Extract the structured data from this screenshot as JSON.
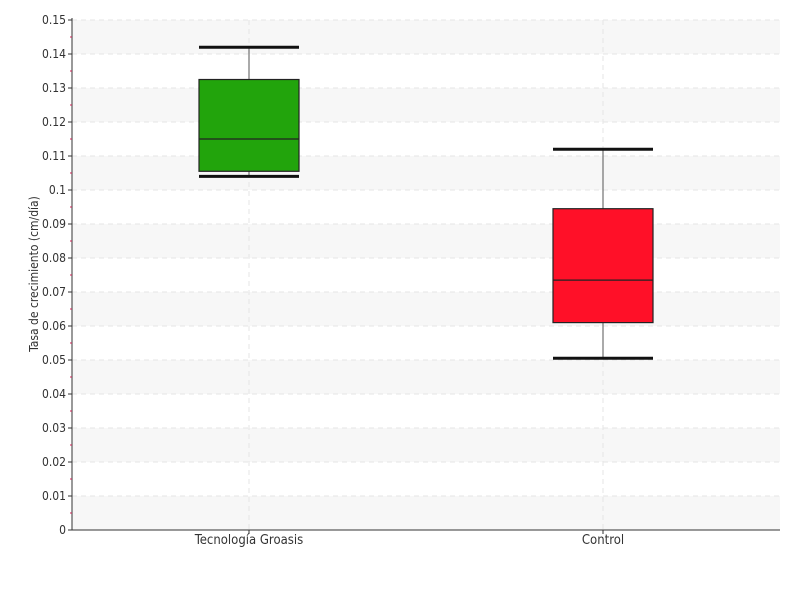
{
  "chart_data": {
    "type": "boxplot",
    "title": "",
    "xlabel": "",
    "ylabel": "Tasa de crecimiento (cm/día)",
    "ylim": [
      0,
      0.15
    ],
    "yticks": [
      0,
      0.01,
      0.02,
      0.03,
      0.04,
      0.05,
      0.06,
      0.07,
      0.08,
      0.09,
      0.1,
      0.11,
      0.12,
      0.13,
      0.14,
      0.15
    ],
    "ytick_labels": [
      "0",
      "0.01",
      "0.02",
      "0.03",
      "0.04",
      "0.05",
      "0.06",
      "0.07",
      "0.08",
      "0.09",
      "0.1",
      "0.11",
      "0.12",
      "0.13",
      "0.14",
      "0.15"
    ],
    "grid": true,
    "categories": [
      "Tecnología Groasis",
      "Control"
    ],
    "boxes": [
      {
        "category": "Tecnología Groasis",
        "min": 0.104,
        "q1": 0.1055,
        "median": 0.115,
        "q3": 0.1325,
        "max": 0.142,
        "color": "#22a40c"
      },
      {
        "category": "Control",
        "min": 0.0505,
        "q1": 0.061,
        "median": 0.0735,
        "q3": 0.0945,
        "max": 0.112,
        "color": "#ff1028"
      }
    ]
  }
}
